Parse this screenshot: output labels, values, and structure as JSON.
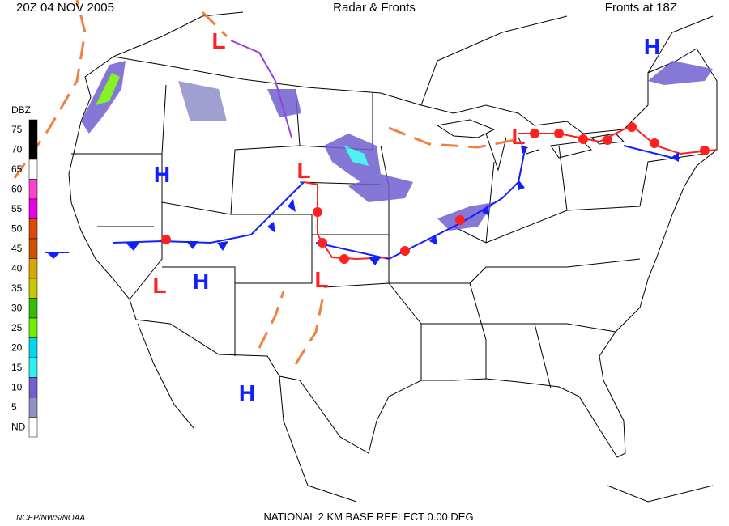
{
  "header": {
    "time": "20Z  04 NOV  2005",
    "title": "Radar & Fronts",
    "fronts": "Fronts at 18Z"
  },
  "footer": {
    "credit": "NCEP/NWS/NOAA",
    "product": "NATIONAL 2 KM BASE REFLECT 0.00 DEG"
  },
  "legend": {
    "title": "DBZ",
    "levels": [
      {
        "label": "75",
        "color": "#000000"
      },
      {
        "label": "70",
        "color": "#000000"
      },
      {
        "label": "65",
        "color": "#ffffff"
      },
      {
        "label": "60",
        "color": "#ff40d0"
      },
      {
        "label": "55",
        "color": "#e800e8"
      },
      {
        "label": "50",
        "color": "#e04800"
      },
      {
        "label": "45",
        "color": "#d05000"
      },
      {
        "label": "40",
        "color": "#d8a800"
      },
      {
        "label": "35",
        "color": "#c8c800"
      },
      {
        "label": "30",
        "color": "#30c000"
      },
      {
        "label": "25",
        "color": "#70f000"
      },
      {
        "label": "20",
        "color": "#00d8f0"
      },
      {
        "label": "15",
        "color": "#30f0f0"
      },
      {
        "label": "10",
        "color": "#7060d0"
      },
      {
        "label": "5",
        "color": "#9090c8"
      },
      {
        "label": "ND",
        "color": "#ffffff"
      }
    ]
  },
  "centers": [
    {
      "label": "L",
      "color": "#ff2020"
    },
    {
      "label": "H",
      "color": "#1020ff"
    },
    {
      "label": "H",
      "color": "#1020ff"
    },
    {
      "label": "L",
      "color": "#ff2020"
    },
    {
      "label": "L",
      "color": "#ff2020"
    },
    {
      "label": "L",
      "color": "#ff2020"
    },
    {
      "label": "H",
      "color": "#1020ff"
    },
    {
      "label": "L",
      "color": "#ff2020"
    },
    {
      "label": "H",
      "color": "#1020ff"
    }
  ]
}
